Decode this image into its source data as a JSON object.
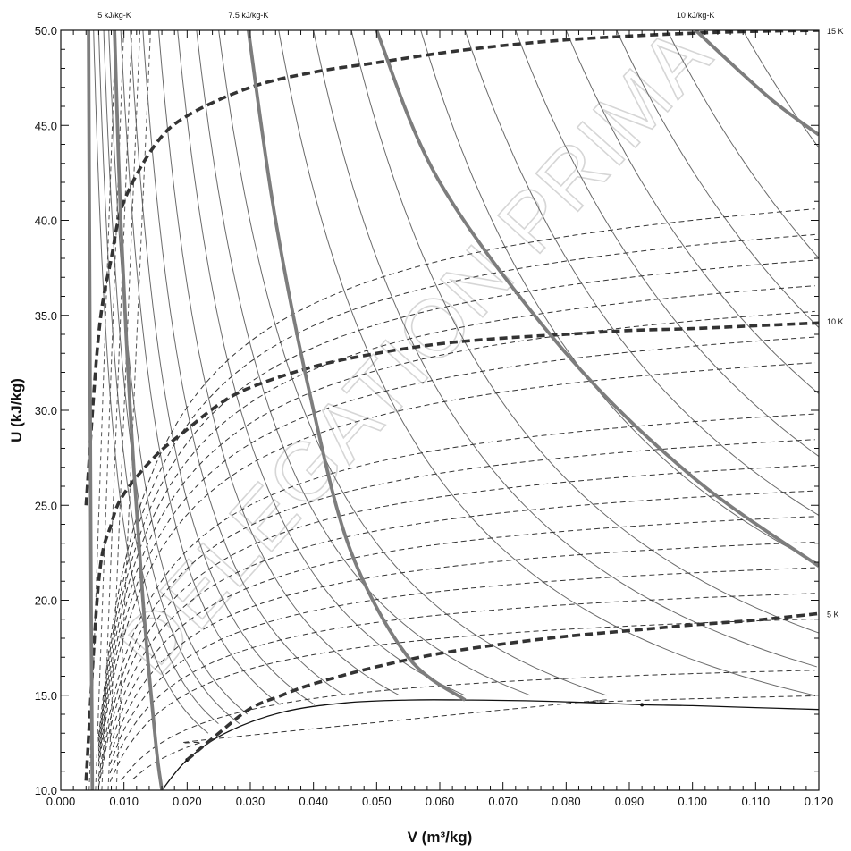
{
  "chart_data": {
    "type": "line",
    "xlabel": "V (m³/kg)",
    "ylabel": "U (kJ/kg)",
    "xlim": [
      0.0,
      0.12
    ],
    "ylim": [
      10.0,
      50.0
    ],
    "x_ticks": [
      "0.000",
      "0.010",
      "0.020",
      "0.030",
      "0.040",
      "0.050",
      "0.060",
      "0.070",
      "0.080",
      "0.090",
      "0.100",
      "0.110",
      "0.120"
    ],
    "y_ticks": [
      "10.0",
      "15.0",
      "20.0",
      "25.0",
      "30.0",
      "35.0",
      "40.0",
      "45.0",
      "50.0"
    ],
    "watermark": "DELEGATION PRIMA",
    "entropy_labels": [
      {
        "text": "5 kJ/kg-K",
        "x": 0.0085
      },
      {
        "text": "7.5 kJ/kg-K",
        "x": 0.0297
      },
      {
        "text": "10 kJ/kg-K",
        "x": 0.1005
      }
    ],
    "temperature_labels": [
      {
        "text": "15 K",
        "y": 50.0
      },
      {
        "text": "10 K",
        "y": 34.7
      },
      {
        "text": "5 K",
        "y": 19.3
      }
    ],
    "saturation_curve": {
      "x": [
        0.016,
        0.02,
        0.026,
        0.035,
        0.045,
        0.055,
        0.065,
        0.075,
        0.085,
        0.092,
        0.1,
        0.11,
        0.12
      ],
      "y": [
        10.0,
        11.6,
        13.0,
        14.1,
        14.6,
        14.75,
        14.75,
        14.7,
        14.6,
        14.5,
        14.45,
        14.35,
        14.25
      ]
    },
    "series": [
      {
        "name": "15 K",
        "kind": "isotherm_major",
        "x": [
          0.004,
          0.006,
          0.008,
          0.01,
          0.015,
          0.02,
          0.03,
          0.04,
          0.05,
          0.06,
          0.07,
          0.08,
          0.09,
          0.1,
          0.11,
          0.12
        ],
        "y": [
          25.0,
          34.0,
          38.0,
          41.0,
          44.0,
          45.5,
          47.0,
          47.8,
          48.3,
          48.8,
          49.2,
          49.5,
          49.7,
          49.85,
          49.95,
          50.0
        ]
      },
      {
        "name": "10 K",
        "kind": "isotherm_major",
        "x": [
          0.004,
          0.006,
          0.008,
          0.01,
          0.015,
          0.02,
          0.025,
          0.03,
          0.04,
          0.05,
          0.06,
          0.07,
          0.08,
          0.09,
          0.1,
          0.11,
          0.12
        ],
        "y": [
          10.5,
          21.0,
          24.0,
          25.6,
          27.6,
          29.0,
          30.3,
          31.2,
          32.3,
          33.0,
          33.5,
          33.8,
          34.0,
          34.2,
          34.3,
          34.45,
          34.6
        ]
      },
      {
        "name": "5 K",
        "kind": "isotherm_major",
        "x": [
          0.02,
          0.025,
          0.03,
          0.035,
          0.04,
          0.05,
          0.06,
          0.07,
          0.08,
          0.09,
          0.1,
          0.11,
          0.12
        ],
        "y": [
          11.6,
          13.0,
          14.3,
          15.0,
          15.6,
          16.5,
          17.2,
          17.7,
          18.1,
          18.4,
          18.7,
          18.95,
          19.3
        ]
      },
      {
        "name": "5 kJ/kg-K",
        "kind": "isentrope_major",
        "x": [
          0.0085,
          0.0095,
          0.011,
          0.013,
          0.015,
          0.016
        ],
        "y": [
          50.0,
          40.0,
          30.0,
          20.0,
          12.6,
          10.0
        ]
      },
      {
        "name": "7.5 kJ/kg-K",
        "kind": "isentrope_major",
        "x": [
          0.0297,
          0.034,
          0.04,
          0.046,
          0.055,
          0.064
        ],
        "y": [
          50.0,
          40.0,
          30.0,
          22.5,
          17.0,
          14.75
        ]
      },
      {
        "name": "10 kJ/kg-K",
        "kind": "isentrope_major",
        "x": [
          0.1005,
          0.112,
          0.12
        ],
        "y": [
          50.0,
          46.5,
          44.5
        ]
      },
      {
        "name": "",
        "kind": "isentrope_major",
        "x": [
          0.05,
          0.06,
          0.08,
          0.1,
          0.12
        ],
        "y": [
          50.0,
          42.0,
          33.0,
          26.5,
          21.8
        ]
      },
      {
        "name": "",
        "kind": "isentrope_major",
        "x": [
          0.0044,
          0.0046,
          0.0048,
          0.005
        ],
        "y": [
          50.0,
          35.0,
          20.0,
          10.0
        ]
      }
    ]
  }
}
